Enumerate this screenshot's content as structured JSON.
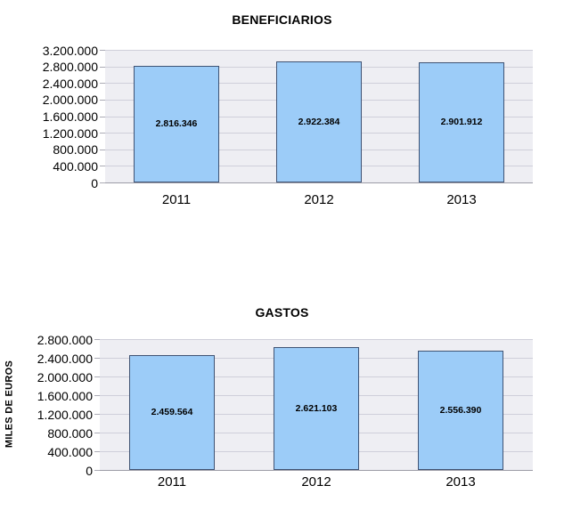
{
  "page": {
    "background": "#ffffff"
  },
  "colors": {
    "plot_bg": "#eeeef3",
    "gridline": "#cfcfda",
    "axis_line": "#9c9ca6",
    "tick": "#ababb5",
    "text": "#000000"
  },
  "chart_data": [
    {
      "type": "bar",
      "title": "BENEFICIARIOS",
      "categories": [
        "2011",
        "2012",
        "2013"
      ],
      "values": [
        2816346,
        2922384,
        2901912
      ],
      "data_labels": [
        "2.816.346",
        "2.922.384",
        "2.901.912"
      ],
      "xlabel": "",
      "ylabel": "",
      "ylim": [
        0,
        3200000
      ],
      "ytick_step": 400000,
      "ytick_labels": [
        "3.200.000",
        "2.800.000",
        "2.400.000",
        "2.000.000",
        "1.600.000",
        "1.200.000",
        "800.000",
        "400.000",
        "0"
      ],
      "grid": true,
      "legend": "none",
      "bar_fill": "#9cccf8",
      "bar_border": "#3f5374"
    },
    {
      "type": "bar",
      "title": "GASTOS",
      "categories": [
        "2011",
        "2012",
        "2013"
      ],
      "values": [
        2459564,
        2621103,
        2556390
      ],
      "data_labels": [
        "2.459.564",
        "2.621.103",
        "2.556.390"
      ],
      "xlabel": "",
      "ylabel": "MILES DE EUROS",
      "ylim": [
        0,
        2800000
      ],
      "ytick_step": 400000,
      "ytick_labels": [
        "2.800.000",
        "2.400.000",
        "2.000.000",
        "1.600.000",
        "1.200.000",
        "800.000",
        "400.000",
        "0"
      ],
      "grid": true,
      "legend": "none",
      "bar_fill": "#9cccf8",
      "bar_border": "#3f5374"
    }
  ]
}
